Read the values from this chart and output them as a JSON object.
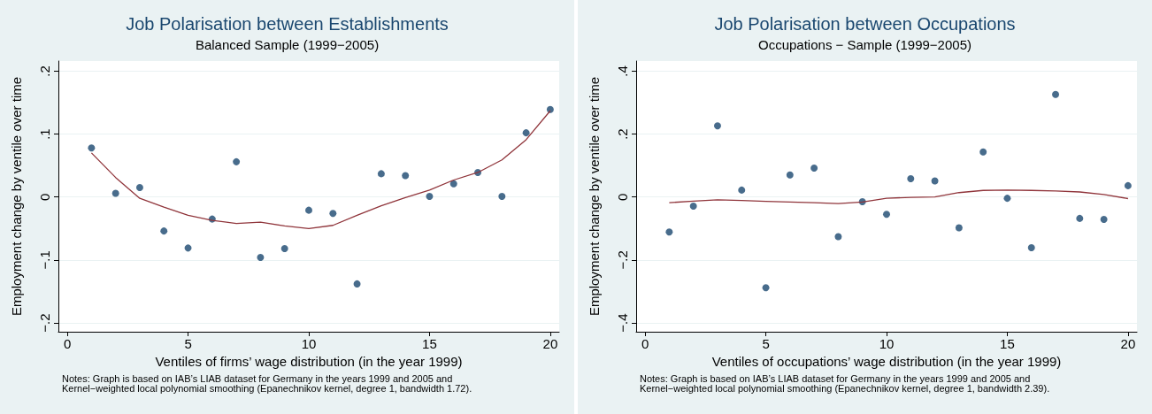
{
  "chart_data": [
    {
      "type": "scatter",
      "title": "Job Polarisation between Establishments",
      "subtitle": "Balanced Sample (1999−2005)",
      "xlabel": "Ventiles of firms’ wage distribution (in the year 1999)",
      "ylabel": "Employment change by ventile over time",
      "annotations": [
        "Notes: Graph is based on IAB’s LIAB dataset for Germany in the years 1999 and 2005 and Kernel−weighted local polynomial smoothing (Epanechnikov kernel, degree 1, bandwidth 1.72)."
      ],
      "x": [
        1,
        2,
        3,
        4,
        5,
        6,
        7,
        8,
        9,
        10,
        11,
        12,
        13,
        14,
        15,
        16,
        17,
        18,
        19,
        20
      ],
      "series": [
        {
          "color": "#1a476f",
          "values": [
            0.078,
            0.006,
            0.015,
            -0.054,
            -0.081,
            -0.035,
            0.056,
            -0.096,
            -0.082,
            -0.021,
            -0.026,
            -0.138,
            0.037,
            0.034,
            0.001,
            0.021,
            0.039,
            0.001,
            0.102,
            0.139
          ]
        },
        {
          "type": "line",
          "color": "#90353b",
          "marker": "none",
          "values": [
            0.07,
            0.031,
            -0.002,
            -0.016,
            -0.029,
            -0.037,
            -0.042,
            -0.04,
            -0.046,
            -0.05,
            -0.045,
            -0.029,
            -0.014,
            -0.001,
            0.011,
            0.027,
            0.039,
            0.059,
            0.091,
            0.137
          ]
        }
      ],
      "xlim": [
        -0.37,
        20.37
      ],
      "xticks": [
        0,
        5,
        10,
        15,
        20
      ],
      "ylim": [
        -0.214,
        0.216
      ],
      "yticks": [
        {
          "value": -0.2,
          "label": "−.2"
        },
        {
          "value": -0.1,
          "label": "−.1"
        },
        0,
        {
          "value": 0.1,
          "label": ".1"
        },
        {
          "value": 0.2,
          "label": ".2"
        }
      ],
      "grid": "y",
      "marker": "circle"
    },
    {
      "type": "scatter",
      "title": "Job Polarisation between Occupations",
      "subtitle": "Occupations − Sample (1999−2005)",
      "xlabel": "Ventiles of occupations’ wage distribution (in the year 1999)",
      "ylabel": "Employment change by ventile over time",
      "annotations": [
        "Notes: Graph is based on IAB’s LIAB dataset for Germany in the years 1999 and 2005 and Kernel−weighted local polynomial smoothing (Epanechnikov kernel, degree 1, bandwidth 2.39)."
      ],
      "x": [
        1,
        2,
        3,
        4,
        5,
        6,
        7,
        8,
        9,
        10,
        11,
        12,
        13,
        14,
        15,
        16,
        17,
        18,
        19,
        20
      ],
      "series": [
        {
          "color": "#1a476f",
          "values": [
            -0.111,
            -0.029,
            0.226,
            0.022,
            -0.288,
            0.07,
            0.092,
            -0.126,
            -0.015,
            -0.055,
            0.058,
            0.051,
            -0.098,
            0.143,
            -0.004,
            -0.161,
            0.326,
            -0.068,
            -0.071,
            0.036
          ]
        },
        {
          "type": "line",
          "color": "#90353b",
          "marker": "none",
          "values": [
            -0.018,
            -0.013,
            -0.009,
            -0.011,
            -0.014,
            -0.016,
            -0.018,
            -0.021,
            -0.016,
            -0.004,
            -0.001,
            0.0,
            0.014,
            0.021,
            0.022,
            0.021,
            0.019,
            0.016,
            0.008,
            -0.005
          ]
        }
      ],
      "xlim": [
        -0.37,
        20.37
      ],
      "xticks": [
        0,
        5,
        10,
        15,
        20
      ],
      "ylim": [
        -0.428,
        0.432
      ],
      "yticks": [
        {
          "value": -0.4,
          "label": "−.4"
        },
        {
          "value": -0.2,
          "label": "−.2"
        },
        0,
        {
          "value": 0.2,
          "label": ".2"
        },
        {
          "value": 0.4,
          "label": ".4"
        }
      ],
      "grid": "y",
      "marker": "circle"
    }
  ]
}
